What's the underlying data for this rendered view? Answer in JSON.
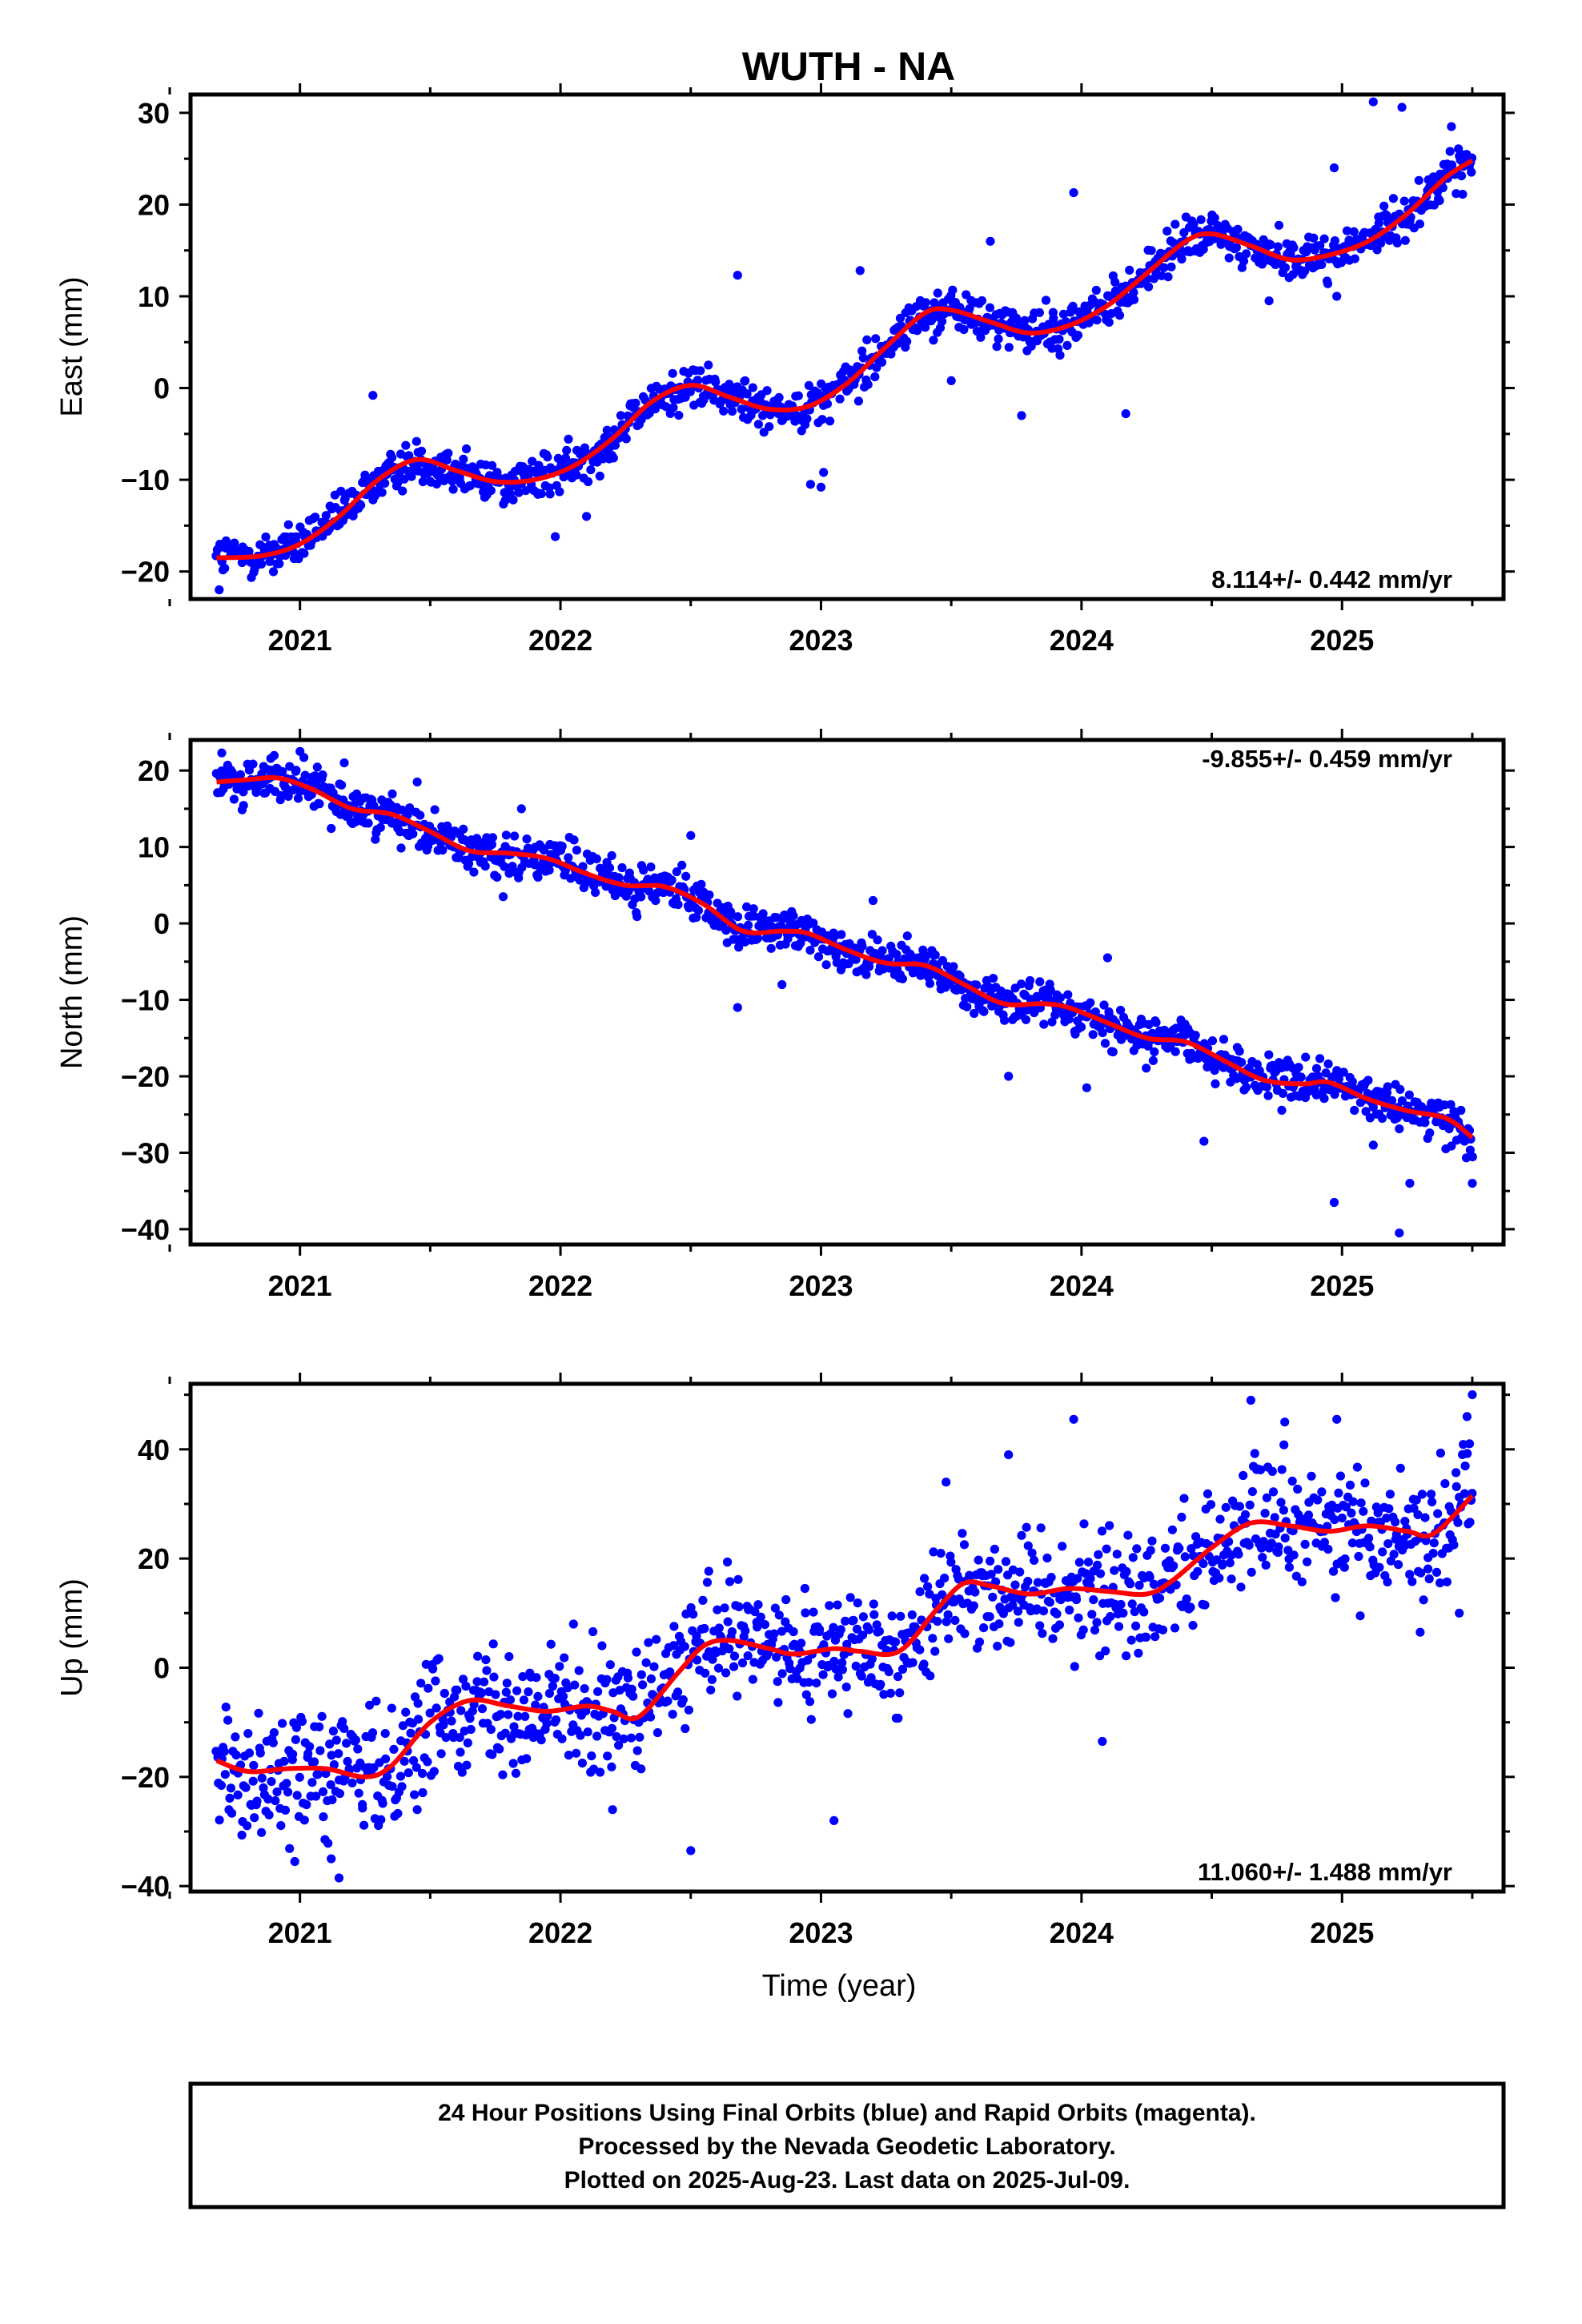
{
  "page": {
    "title": "WUTH - NA"
  },
  "colors": {
    "points": "#0000ff",
    "fit": "#ff0000",
    "frame": "#000000"
  },
  "footer": {
    "lines": [
      "24 Hour Positions Using Final Orbits (blue) and Rapid Orbits (magenta).",
      "Processed by the Nevada Geodetic Laboratory.",
      "Plotted on 2025-Aug-23. Last data on 2025-Jul-09."
    ]
  },
  "chart_data": [
    {
      "type": "scatter",
      "component": "East",
      "ylabel": "East (mm)",
      "xlabel": "",
      "xlim": [
        2020.58,
        2025.62
      ],
      "ylim": [
        -23,
        32
      ],
      "xticks": [
        2021,
        2022,
        2023,
        2024,
        2025
      ],
      "yticks": [
        -20,
        -10,
        0,
        10,
        20,
        30
      ],
      "rate_label": "8.114+/- 0.442 mm/yr",
      "rate_position": "bottom-right",
      "fit": {
        "x": [
          2020.68,
          2020.85,
          2021.0,
          2021.15,
          2021.3,
          2021.45,
          2021.6,
          2021.75,
          2021.9,
          2022.05,
          2022.2,
          2022.35,
          2022.5,
          2022.65,
          2022.8,
          2022.95,
          2023.1,
          2023.25,
          2023.4,
          2023.5,
          2023.65,
          2023.8,
          2023.95,
          2024.1,
          2024.25,
          2024.4,
          2024.5,
          2024.65,
          2024.8,
          2024.95,
          2025.1,
          2025.25,
          2025.4,
          2025.5
        ],
        "y": [
          -18.5,
          -18.3,
          -17.0,
          -14.0,
          -10.0,
          -7.8,
          -9.0,
          -10.2,
          -10.0,
          -8.5,
          -5.5,
          -1.5,
          0.3,
          -1.0,
          -2.3,
          -2.0,
          0.5,
          4.5,
          8.2,
          8.5,
          7.2,
          6.0,
          6.8,
          9.0,
          12.5,
          16.0,
          16.8,
          15.5,
          14.0,
          14.5,
          16.0,
          19.0,
          23.0,
          24.8
        ]
      },
      "outliers": [
        {
          "x": 2021.28,
          "y": -0.8
        },
        {
          "x": 2022.68,
          "y": 12.3
        },
        {
          "x": 2023.15,
          "y": 12.8
        },
        {
          "x": 2023.0,
          "y": -10.8
        },
        {
          "x": 2022.96,
          "y": -10.5
        },
        {
          "x": 2023.01,
          "y": -9.2
        },
        {
          "x": 2023.65,
          "y": 16.0
        },
        {
          "x": 2023.77,
          "y": -3.0
        },
        {
          "x": 2023.97,
          "y": 21.3
        },
        {
          "x": 2024.17,
          "y": -2.8
        },
        {
          "x": 2024.97,
          "y": 24.0
        },
        {
          "x": 2025.12,
          "y": 31.2
        },
        {
          "x": 2025.23,
          "y": 30.6
        },
        {
          "x": 2025.42,
          "y": 28.5
        },
        {
          "x": 2020.69,
          "y": -22.0
        },
        {
          "x": 2021.98,
          "y": -16.2
        },
        {
          "x": 2022.1,
          "y": -14.0
        },
        {
          "x": 2023.5,
          "y": 0.8
        },
        {
          "x": 2024.72,
          "y": 9.5
        },
        {
          "x": 2024.98,
          "y": 10.0
        }
      ]
    },
    {
      "type": "scatter",
      "component": "North",
      "ylabel": "North (mm)",
      "xlabel": "",
      "xlim": [
        2020.58,
        2025.62
      ],
      "ylim": [
        -42,
        24
      ],
      "xticks": [
        2021,
        2022,
        2023,
        2024,
        2025
      ],
      "yticks": [
        -40,
        -30,
        -20,
        -10,
        0,
        10,
        20
      ],
      "rate_label": "-9.855+/- 0.459 mm/yr",
      "rate_position": "top-right",
      "fit": {
        "x": [
          2020.68,
          2020.8,
          2020.92,
          2021.05,
          2021.2,
          2021.35,
          2021.5,
          2021.65,
          2021.8,
          2021.95,
          2022.1,
          2022.25,
          2022.4,
          2022.55,
          2022.7,
          2022.85,
          2022.95,
          2023.1,
          2023.25,
          2023.4,
          2023.55,
          2023.7,
          2023.85,
          2023.95,
          2024.1,
          2024.25,
          2024.4,
          2024.55,
          2024.7,
          2024.85,
          2024.95,
          2025.1,
          2025.25,
          2025.4,
          2025.5
        ],
        "y": [
          18.5,
          18.8,
          19.0,
          17.5,
          15.0,
          14.3,
          12.0,
          9.5,
          9.2,
          8.5,
          6.5,
          5.0,
          4.8,
          2.5,
          -1.0,
          -1.0,
          -1.3,
          -3.5,
          -5.2,
          -5.5,
          -8.0,
          -10.5,
          -10.5,
          -11.0,
          -13.0,
          -15.0,
          -15.5,
          -18.0,
          -20.5,
          -21.0,
          -20.8,
          -23.0,
          -24.5,
          -25.5,
          -28.0
        ]
      },
      "outliers": [
        {
          "x": 2020.7,
          "y": 22.3
        },
        {
          "x": 2021.0,
          "y": 22.5
        },
        {
          "x": 2021.17,
          "y": 21.0
        },
        {
          "x": 2021.45,
          "y": 18.5
        },
        {
          "x": 2021.85,
          "y": 15.0
        },
        {
          "x": 2022.5,
          "y": 11.5
        },
        {
          "x": 2022.85,
          "y": -8.0
        },
        {
          "x": 2022.68,
          "y": -11.0
        },
        {
          "x": 2023.2,
          "y": 3.0
        },
        {
          "x": 2023.72,
          "y": -20.0
        },
        {
          "x": 2024.02,
          "y": -21.5
        },
        {
          "x": 2024.1,
          "y": -4.5
        },
        {
          "x": 2024.47,
          "y": -28.5
        },
        {
          "x": 2024.97,
          "y": -36.5
        },
        {
          "x": 2025.22,
          "y": -40.5
        },
        {
          "x": 2025.26,
          "y": -34.0
        },
        {
          "x": 2025.5,
          "y": -34.0
        },
        {
          "x": 2025.12,
          "y": -29.0
        },
        {
          "x": 2021.78,
          "y": 3.5
        },
        {
          "x": 2024.86,
          "y": -17.5
        }
      ]
    },
    {
      "type": "scatter",
      "component": "Up",
      "ylabel": "Up (mm)",
      "xlabel": "Time (year)",
      "xlim": [
        2020.58,
        2025.62
      ],
      "ylim": [
        -41,
        52
      ],
      "xticks": [
        2021,
        2022,
        2023,
        2024,
        2025
      ],
      "yticks": [
        -40,
        -20,
        0,
        20,
        40
      ],
      "rate_label": "11.060+/- 1.488 mm/yr",
      "rate_position": "bottom-right",
      "fit": {
        "x": [
          2020.68,
          2020.8,
          2020.95,
          2021.1,
          2021.25,
          2021.35,
          2021.5,
          2021.65,
          2021.8,
          2021.95,
          2022.1,
          2022.2,
          2022.3,
          2022.45,
          2022.55,
          2022.65,
          2022.8,
          2022.9,
          2023.05,
          2023.15,
          2023.3,
          2023.45,
          2023.55,
          2023.65,
          2023.8,
          2023.95,
          2024.1,
          2024.25,
          2024.35,
          2024.5,
          2024.65,
          2024.8,
          2024.95,
          2025.1,
          2025.25,
          2025.35,
          2025.5
        ],
        "y": [
          -17.0,
          -19.0,
          -18.5,
          -18.5,
          -20.0,
          -18.0,
          -10.0,
          -6.0,
          -7.0,
          -8.0,
          -7.0,
          -8.0,
          -9.0,
          -1.0,
          4.0,
          5.0,
          3.5,
          2.5,
          3.5,
          3.0,
          3.0,
          11.0,
          15.5,
          15.0,
          13.5,
          14.5,
          14.0,
          13.5,
          16.0,
          22.0,
          26.5,
          26.0,
          25.0,
          26.0,
          25.0,
          24.5,
          31.5
        ]
      },
      "outliers": [
        {
          "x": 2021.15,
          "y": -38.5
        },
        {
          "x": 2021.12,
          "y": -35.0
        },
        {
          "x": 2020.98,
          "y": -35.5
        },
        {
          "x": 2022.5,
          "y": -33.5
        },
        {
          "x": 2023.05,
          "y": -28.0
        },
        {
          "x": 2024.08,
          "y": -13.5
        },
        {
          "x": 2023.97,
          "y": 45.5
        },
        {
          "x": 2023.72,
          "y": 39.0
        },
        {
          "x": 2024.65,
          "y": 49.0
        },
        {
          "x": 2024.78,
          "y": 45.0
        },
        {
          "x": 2024.98,
          "y": 45.5
        },
        {
          "x": 2025.5,
          "y": 50.0
        },
        {
          "x": 2025.48,
          "y": 46.0
        },
        {
          "x": 2025.07,
          "y": 9.5
        },
        {
          "x": 2025.3,
          "y": 6.5
        },
        {
          "x": 2025.45,
          "y": 10.0
        },
        {
          "x": 2022.2,
          "y": -26.0
        },
        {
          "x": 2021.45,
          "y": -26.0
        },
        {
          "x": 2022.05,
          "y": 8.0
        },
        {
          "x": 2023.48,
          "y": 34.0
        }
      ]
    }
  ]
}
